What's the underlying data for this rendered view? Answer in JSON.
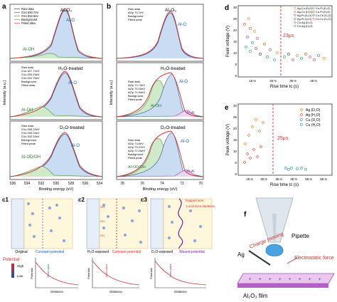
{
  "panel_a": {
    "letter": "a",
    "compound": "Al₂O₃",
    "ylabel": "Intensity (a.u.)",
    "xlabel": "Binding energy (eV)",
    "xticks": [
      "536",
      "534",
      "532",
      "530",
      "528",
      "526",
      "524"
    ],
    "sub1": {
      "legend": [
        "Raw data",
        "O1s 530.7eV",
        "O1s 532.6ev",
        "Background",
        "Fitted data"
      ],
      "peak_main": "Al-O",
      "peak_side": "Al-OH"
    },
    "sub2": {
      "title": "H₂O-treated",
      "legend": [
        "Raw data",
        "O1s 527.71eV",
        "O1s 530.25eV",
        "O1s 531.75eV",
        "Background",
        "Fitted data"
      ],
      "peak_main": "Al-O",
      "peak_side": "Al-OH"
    },
    "sub3": {
      "title": "D₂O-treated",
      "legend": [
        "Raw data",
        "O1s 528.22eV",
        "O1s 530.24eV",
        "O1s 532.32eV",
        "Background",
        "Fitted peak"
      ],
      "peak_main": "Al-O",
      "peak_side": "Al-OD/OH"
    }
  },
  "panel_b": {
    "letter": "b",
    "compound": "Al₂O₃",
    "ylabel": "Intensity (a.u.)",
    "xlabel": "Binding energy (eV)",
    "xticks": [
      "78",
      "76",
      "74",
      "72",
      "70"
    ],
    "sub1": {
      "legend": [
        "Raw data",
        "Al2p 73.7eV",
        "Background",
        "Fitted peak"
      ],
      "peak_main": "Al-O"
    },
    "sub2": {
      "title": "H₂O-treated",
      "legend": [
        "Raw data",
        "Al2p 73.73eV",
        "Al2p 75.16eV",
        "Al2p 71.94eV",
        "Background",
        "Fitted peak"
      ],
      "peak_main": "Al-O",
      "peak_side": "Al-OH",
      "peak_metal": "Al-Al"
    },
    "sub3": {
      "title": "D₂O-treated",
      "legend": [
        "Raw data",
        "Al2p 73.6eV",
        "Al2p 75.07eV",
        "Al2p 72.16eV",
        "Background",
        "Fitted peak"
      ],
      "peak_main": "Al-O",
      "peak_side": "Al-OD/OH",
      "peak_metal": "Al-Al"
    }
  },
  "panel_d": {
    "letter": "d",
    "ylabel": "Peak voltage (V)",
    "xlabel": "Rise time tᴄ (s)",
    "marker_text": "23μs",
    "yticks": [
      "0",
      "5",
      "10",
      "15",
      "20",
      "25",
      "30"
    ],
    "xticks": [
      "1E-5",
      "2E-5",
      "3E-5",
      "4E-5"
    ],
    "legend_col1": [
      "Ag-Cu (D₂O)",
      "Ag-Cu (H₂O)",
      "Ag-Pt (D₂O)",
      "Ag-Pt (H₂O)",
      "Cu-Ag (D₂O)",
      "Cu-Ag (H₂O)"
    ],
    "legend_col2": [
      "Cu-Pt (D₂O)",
      "Cu-Pt (H₂O)",
      "Cu-Cu (D₂O)",
      "Cu-Cu (H₂O)"
    ],
    "colors": [
      "#f08a20",
      "#e74c3c",
      "#8e44ad",
      "#c0392b",
      "#16a085",
      "#2e86c1",
      "#27ae60",
      "#d35400",
      "#2c3e50",
      "#e84393"
    ]
  },
  "panel_e": {
    "letter": "e",
    "ylabel": "Peak voltage (V)",
    "xlabel": "Rise time tᴄ (s)",
    "marker_text": "25μs",
    "yticks": [
      "0",
      "5",
      "10",
      "15",
      "20",
      "25",
      "30"
    ],
    "xticks": [
      "1E-5",
      "2E-5",
      "3E-5",
      "4E-5",
      "5E-5",
      "6E-5"
    ],
    "legend": [
      "Ag (D₂O)",
      "Ag (H₂O)",
      "Cu (D₂O)",
      "Cu (H₂O)"
    ],
    "colors": [
      "#e67e22",
      "#e74c3c",
      "#2e86c1",
      "#16a085"
    ]
  },
  "panel_c": {
    "labels": [
      "c1",
      "c2",
      "c3"
    ],
    "captions": [
      "Original",
      "Constant potential",
      "H₂O-exposed",
      "Constant potential",
      "D₂O-exposed",
      "Waved potential"
    ],
    "annotations": [
      "Trapped ions",
      "Local area depletion"
    ],
    "potential_legend": {
      "title": "Potential",
      "high": "High",
      "low": "Low"
    },
    "graph_ylabel": "Potential",
    "graph_xlabel": "Distance",
    "graph_axis_labels": [
      "Shear plane",
      "Shear plane",
      "Shear plane"
    ]
  },
  "panel_f": {
    "letter": "f",
    "pipette": "Pipette",
    "metal": "Ag",
    "charge": "Charge moving",
    "force": "Electrostatic force",
    "film": "Al₂O₃ film"
  }
}
